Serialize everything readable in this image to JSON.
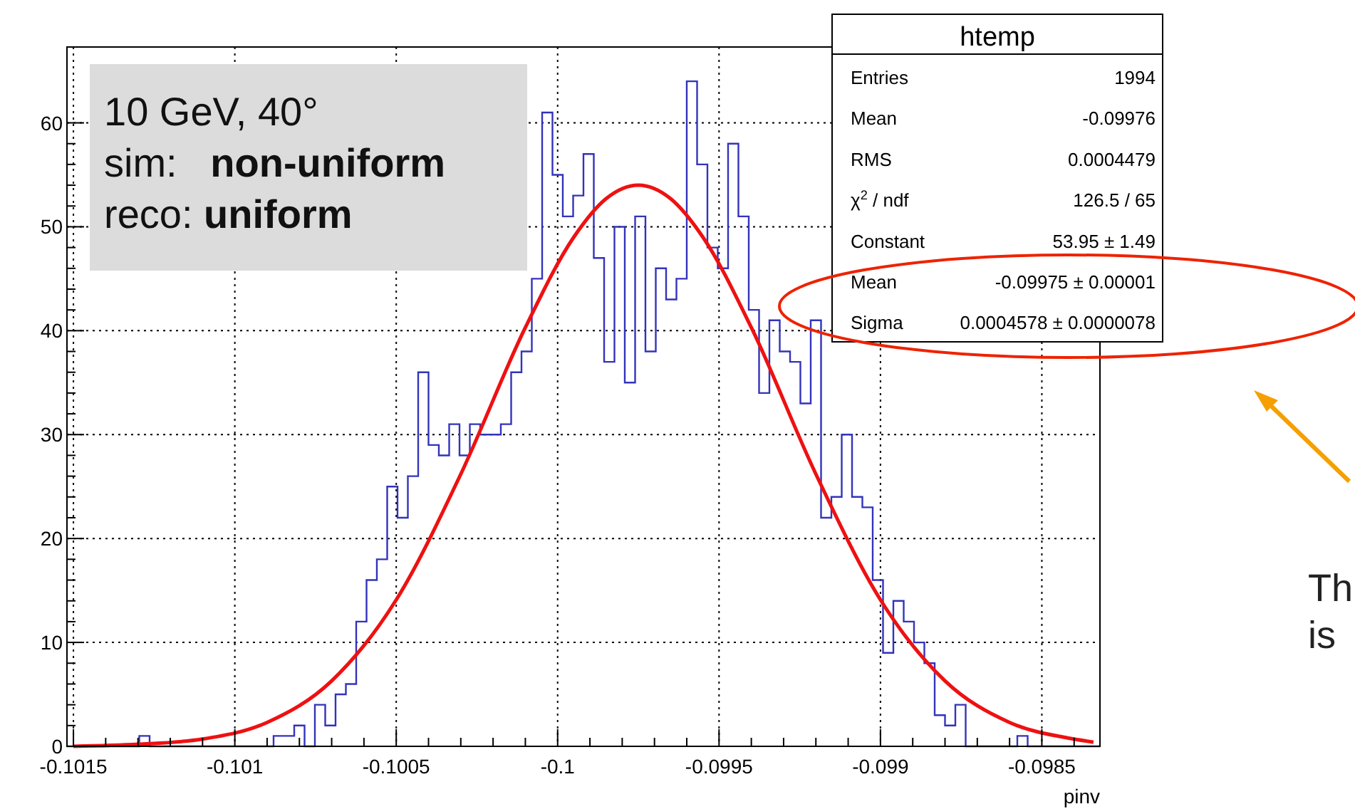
{
  "chart_data": {
    "type": "histogram",
    "title": "htemp",
    "xlabel": "pinv",
    "xlim": [
      -0.10152,
      -0.09832
    ],
    "ylim": [
      0,
      67.3
    ],
    "xticks": [
      -0.1015,
      -0.101,
      -0.1005,
      -0.1,
      -0.0995,
      -0.099,
      -0.0985
    ],
    "yticks": [
      0,
      10,
      20,
      30,
      40,
      50,
      60
    ],
    "grid": true,
    "bins": [
      -0.10152,
      -0.101488,
      -0.101456,
      -0.101424,
      -0.101392,
      -0.10136,
      -0.101328,
      -0.101296,
      -0.101264,
      -0.101232,
      -0.1012,
      -0.101168,
      -0.101136,
      -0.101104,
      -0.101072,
      -0.10104,
      -0.101008,
      -0.100976,
      -0.100944,
      -0.100912,
      -0.10088,
      -0.100848,
      -0.100816,
      -0.100784,
      -0.100752,
      -0.10072,
      -0.100688,
      -0.100656,
      -0.100624,
      -0.100592,
      -0.10056,
      -0.100528,
      -0.100496,
      -0.100464,
      -0.100432,
      -0.1004,
      -0.100368,
      -0.100336,
      -0.100304,
      -0.100272,
      -0.10024,
      -0.100208,
      -0.100176,
      -0.100144,
      -0.100112,
      -0.10008,
      -0.100048,
      -0.100016,
      -0.099984,
      -0.099952,
      -0.09992,
      -0.099888,
      -0.099856,
      -0.099824,
      -0.099792,
      -0.09976,
      -0.099728,
      -0.099696,
      -0.099664,
      -0.099632,
      -0.0996,
      -0.099568,
      -0.099536,
      -0.099504,
      -0.099472,
      -0.09944,
      -0.099408,
      -0.099376,
      -0.099344,
      -0.099312,
      -0.09928,
      -0.099248,
      -0.099216,
      -0.099184,
      -0.099152,
      -0.09912,
      -0.099088,
      -0.099056,
      -0.099024,
      -0.098992,
      -0.09896,
      -0.098928,
      -0.098896,
      -0.098864,
      -0.098832,
      -0.0988,
      -0.098768,
      -0.098736,
      -0.098704,
      -0.098672,
      -0.09864,
      -0.098608,
      -0.098576,
      -0.098544,
      -0.098512,
      -0.09848,
      -0.098448,
      -0.098416,
      -0.098384,
      -0.098352,
      -0.09832
    ],
    "series": [
      {
        "color": "#3333bb",
        "values": [
          0,
          0,
          0,
          0,
          0,
          0,
          0,
          1,
          0,
          0,
          0,
          0,
          0,
          0,
          0,
          0,
          0,
          0,
          0,
          0,
          1,
          1,
          2,
          0,
          4,
          2,
          5,
          6,
          12,
          16,
          18,
          25,
          22,
          26,
          36,
          29,
          28,
          31,
          28,
          31,
          30,
          30,
          31,
          36,
          38,
          45,
          61,
          55,
          51,
          53,
          57,
          47,
          37,
          50,
          35,
          51,
          38,
          46,
          43,
          45,
          64,
          56,
          48,
          46,
          58,
          51,
          42,
          34,
          41,
          38,
          37,
          33,
          41,
          22,
          24,
          30,
          24,
          23,
          16,
          9,
          14,
          12,
          10,
          8,
          3,
          2,
          4,
          0,
          0,
          0,
          0,
          0,
          1,
          0,
          0,
          0,
          0,
          0,
          0,
          0
        ]
      },
      {
        "type": "line",
        "color": "#ee1111",
        "x": [
          -0.1015,
          -0.1013,
          -0.1011,
          -0.1009,
          -0.1007,
          -0.1005,
          -0.1003,
          -0.1001,
          -0.09995,
          -0.09985,
          -0.09975,
          -0.09965,
          -0.09955,
          -0.0994,
          -0.0992,
          -0.099,
          -0.0988,
          -0.0986,
          -0.0984,
          -0.09834
        ],
        "values": [
          0.0,
          0.2,
          0.7,
          2.3,
          6.3,
          14.1,
          26.2,
          40.3,
          49.0,
          52.7,
          54.0,
          52.7,
          49.0,
          40.3,
          26.2,
          14.1,
          6.3,
          2.3,
          0.7,
          0.4
        ]
      }
    ],
    "annotations": [
      "10 GeV, 40°",
      "sim:   non-uniform",
      "reco: uniform",
      "Entries",
      "1994",
      "Mean",
      "-0.09976",
      "RMS",
      "0.0004479",
      "χ$^{2}$ / ndf",
      "126.5 / 65",
      "Constant",
      "53.95 ± 1.49",
      "Mean",
      "-0.09975 ± 0.00001",
      "Sigma",
      "0.0004578 ± 0.0000078",
      "Th",
      "is"
    ]
  }
}
